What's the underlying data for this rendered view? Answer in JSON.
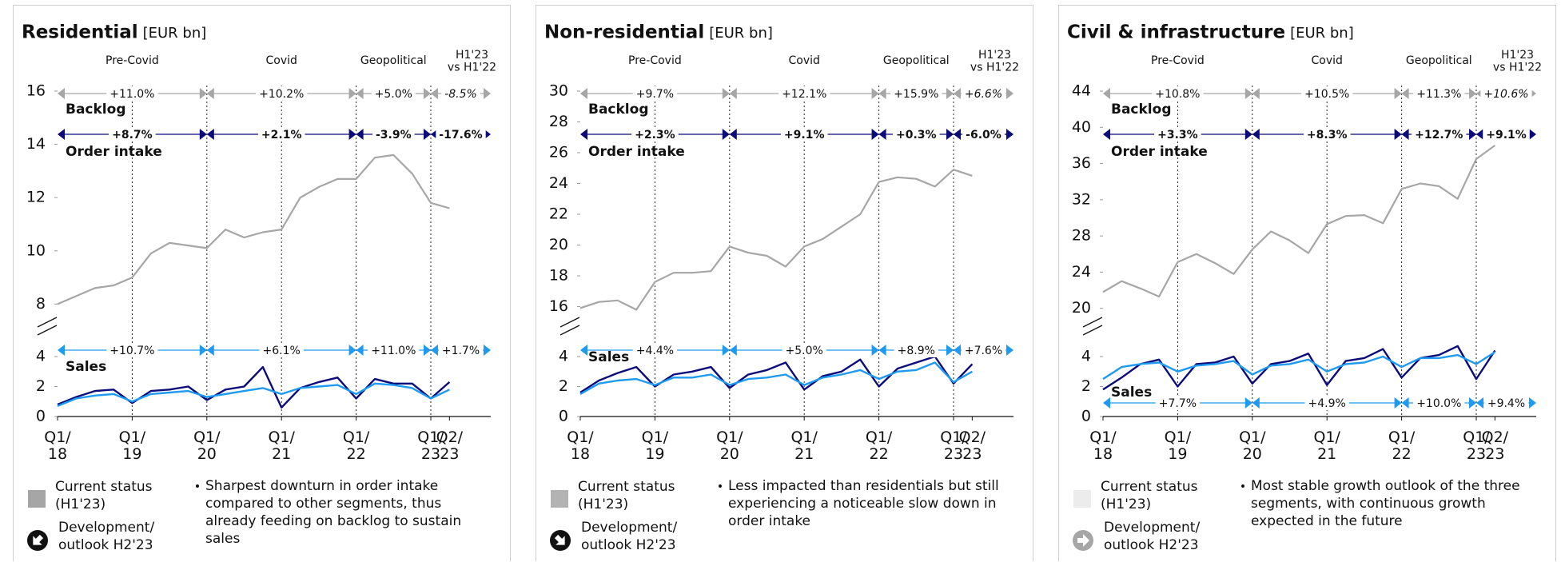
{
  "chart_data": [
    {
      "type": "line",
      "title": "Residential",
      "unit": "[EUR bn]",
      "categories": [
        "Q1/\n18",
        null,
        null,
        null,
        "Q1/\n19",
        null,
        null,
        null,
        "Q1/\n20",
        null,
        null,
        null,
        "Q1/\n21",
        null,
        null,
        null,
        "Q1/\n22",
        null,
        null,
        null,
        "Q1/\n23",
        "Q2/\n23"
      ],
      "periods": [
        "Pre-Covid",
        "Covid",
        "Geopolitical",
        "H1'23\nvs H1'22"
      ],
      "ylim": [
        7.5,
        16
      ],
      "yticks": [
        8,
        10,
        12,
        14,
        16
      ],
      "y2lim": [
        0,
        4.8
      ],
      "y2ticks": [
        0,
        2,
        4
      ],
      "series": [
        {
          "name": "Backlog",
          "color": "#a6a6a6",
          "values": [
            8.0,
            8.3,
            8.6,
            8.7,
            9.0,
            9.9,
            10.3,
            10.2,
            10.1,
            10.8,
            10.5,
            10.7,
            10.8,
            12.0,
            12.4,
            12.7,
            12.7,
            13.5,
            13.6,
            12.9,
            11.8,
            11.6
          ],
          "growth": [
            "+11.0%",
            "+10.2%",
            "+5.0%",
            "-8.5%"
          ]
        },
        {
          "name": "Order intake",
          "axis": "y2",
          "color": "#0b0b7a",
          "values": [
            0.8,
            1.3,
            1.7,
            1.8,
            0.9,
            1.7,
            1.8,
            2.0,
            1.1,
            1.8,
            2.0,
            3.3,
            0.6,
            1.9,
            2.3,
            2.6,
            1.2,
            2.5,
            2.2,
            2.2,
            1.2,
            2.3
          ],
          "growth": [
            "+8.7%",
            "+2.1%",
            "-3.9%",
            "-17.6%"
          ]
        },
        {
          "name": "Sales",
          "axis": "y2",
          "color": "#1e9bf0",
          "values": [
            0.7,
            1.2,
            1.4,
            1.5,
            1.0,
            1.5,
            1.6,
            1.7,
            1.3,
            1.5,
            1.7,
            1.9,
            1.5,
            1.9,
            2.0,
            2.1,
            1.5,
            2.2,
            2.1,
            1.9,
            1.2,
            1.8
          ],
          "growth": [
            "+10.7%",
            "+6.1%",
            "+11.0%",
            "+1.7%"
          ]
        }
      ],
      "legend": {
        "status": "Current status\n(H1'23)",
        "status_color": "#a6a6a6",
        "outlook": "Development/\noutlook H2'23",
        "outlook_color": "#111111"
      },
      "note": "Sharpest downturn in order intake compared to other segments, thus already feeding on backlog to sustain sales"
    },
    {
      "type": "line",
      "title": "Non-residential",
      "unit": "[EUR bn]",
      "categories": [
        "Q1/\n18",
        null,
        null,
        null,
        "Q1/\n19",
        null,
        null,
        null,
        "Q1/\n20",
        null,
        null,
        null,
        "Q1/\n21",
        null,
        null,
        null,
        "Q1/\n22",
        null,
        null,
        null,
        "Q1/\n23",
        "Q2/\n23"
      ],
      "periods": [
        "Pre-Covid",
        "Covid",
        "Geopolitical",
        "H1'23\nvs H1'22"
      ],
      "ylim": [
        15.3,
        30
      ],
      "yticks": [
        16,
        18,
        20,
        22,
        24,
        26,
        28,
        30
      ],
      "y2lim": [
        0,
        4.8
      ],
      "y2ticks": [
        0,
        2,
        4
      ],
      "series": [
        {
          "name": "Backlog",
          "color": "#a6a6a6",
          "values": [
            15.9,
            16.3,
            16.4,
            15.8,
            17.6,
            18.2,
            18.2,
            18.3,
            19.9,
            19.5,
            19.3,
            18.6,
            19.9,
            20.4,
            21.2,
            22.0,
            24.1,
            24.4,
            24.3,
            23.8,
            24.9,
            24.5
          ],
          "growth": [
            "+9.7%",
            "+12.1%",
            "+15.9%",
            "+6.6%"
          ]
        },
        {
          "name": "Order intake",
          "axis": "y2",
          "color": "#0b0b7a",
          "values": [
            1.6,
            2.4,
            2.9,
            3.3,
            2.0,
            2.8,
            3.0,
            3.3,
            1.9,
            2.8,
            3.1,
            3.6,
            1.8,
            2.7,
            3.0,
            3.8,
            2.0,
            3.2,
            3.6,
            4.0,
            2.2,
            3.5
          ],
          "growth": [
            "+2.3%",
            "+9.1%",
            "+0.3%",
            "-6.0%"
          ]
        },
        {
          "name": "Sales",
          "axis": "y2",
          "color": "#1e9bf0",
          "values": [
            1.5,
            2.2,
            2.4,
            2.5,
            2.1,
            2.6,
            2.6,
            2.8,
            2.1,
            2.5,
            2.6,
            2.8,
            2.1,
            2.6,
            2.8,
            3.1,
            2.5,
            3.0,
            3.1,
            3.6,
            2.3,
            3.0
          ],
          "growth": [
            "+4.4%",
            "+5.0%",
            "+8.9%",
            "+7.6%"
          ]
        }
      ],
      "legend": {
        "status": "Current status\n(H1'23)",
        "status_color": "#b3b3b3",
        "outlook": "Development/\noutlook H2'23",
        "outlook_color": "#111111"
      },
      "note": "Less impacted than residentials but still experiencing a noticeable slow down in order intake"
    },
    {
      "type": "line",
      "title": "Civil & infrastructure",
      "unit": "[EUR bn]",
      "categories": [
        "Q1/\n18",
        null,
        null,
        null,
        "Q1/\n19",
        null,
        null,
        null,
        "Q1/\n20",
        null,
        null,
        null,
        "Q1/\n21",
        null,
        null,
        null,
        "Q1/\n22",
        null,
        null,
        null,
        "Q1/\n23",
        "Q2/\n23"
      ],
      "periods": [
        "Pre-Covid",
        "Covid",
        "Geopolitical",
        "H1'23\nvs H1'22"
      ],
      "ylim": [
        19,
        44
      ],
      "yticks": [
        20,
        24,
        28,
        32,
        36,
        40,
        44
      ],
      "y2lim": [
        0,
        4.8
      ],
      "y2ticks": [
        0,
        2,
        4
      ],
      "series": [
        {
          "name": "Backlog",
          "color": "#a6a6a6",
          "values": [
            21.8,
            23.0,
            22.2,
            21.3,
            25.1,
            26.0,
            25.0,
            23.8,
            26.5,
            28.5,
            27.5,
            26.1,
            29.3,
            30.2,
            30.3,
            29.4,
            33.2,
            33.8,
            33.5,
            32.1,
            36.5,
            38.0
          ],
          "growth": [
            "+10.8%",
            "+10.5%",
            "+11.3%",
            "+10.6%"
          ]
        },
        {
          "name": "Order intake",
          "axis": "y2",
          "color": "#0b0b7a",
          "values": [
            1.8,
            2.6,
            3.5,
            3.8,
            2.0,
            3.5,
            3.6,
            4.0,
            2.2,
            3.5,
            3.7,
            4.2,
            2.1,
            3.7,
            3.9,
            4.5,
            2.6,
            3.9,
            4.1,
            4.7,
            2.5,
            4.4
          ],
          "growth": [
            "+3.3%",
            "+8.3%",
            "+12.7%",
            "+9.1%"
          ]
        },
        {
          "name": "Sales",
          "axis": "y2",
          "color": "#1e9bf0",
          "values": [
            2.5,
            3.3,
            3.5,
            3.6,
            3.0,
            3.4,
            3.5,
            3.7,
            2.8,
            3.4,
            3.5,
            3.8,
            3.0,
            3.5,
            3.6,
            4.0,
            3.3,
            3.9,
            3.9,
            4.1,
            3.5,
            4.3
          ],
          "growth": [
            "+7.7%",
            "+4.9%",
            "+10.0%",
            "+9.4%"
          ]
        }
      ],
      "legend": {
        "status": "Current status\n(H1'23)",
        "status_color": "#ececec",
        "outlook": "Development/\noutlook H2'23",
        "outlook_color": "#a6a6a6"
      },
      "note": "Most stable growth outlook of the three segments, with continuous growth expected in the future"
    }
  ]
}
